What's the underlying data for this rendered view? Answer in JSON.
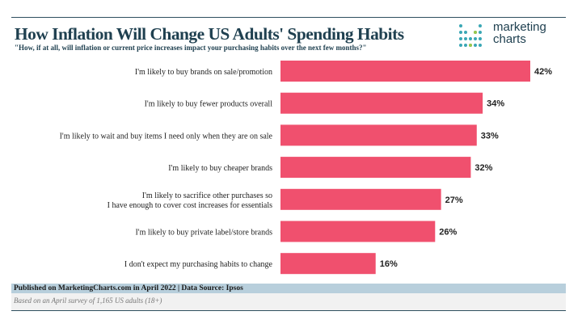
{
  "chart_data": {
    "type": "bar",
    "orientation": "horizontal",
    "title": "How Inflation Will Change US Adults' Spending Habits",
    "subtitle": "\"How, if at all, will inflation or current price increases impact your purchasing habits over the next few months?\"",
    "categories": [
      [
        "I'm likely to buy brands on sale/promotion"
      ],
      [
        "I'm likely to buy fewer products overall"
      ],
      [
        "I'm likely to wait and buy items I need only when they are on sale"
      ],
      [
        "I'm likely to buy cheaper brands"
      ],
      [
        "I'm likely to sacrifice other purchases so",
        "I have enough to cover cost increases for essentials"
      ],
      [
        "I'm likely to buy private label/store brands"
      ],
      [
        "I don't expect my purchasing habits to change"
      ]
    ],
    "values": [
      42,
      34,
      33,
      32,
      27,
      26,
      16
    ],
    "value_labels": [
      "42%",
      "34%",
      "33%",
      "32%",
      "27%",
      "26%",
      "16%"
    ],
    "xlim": [
      0,
      42
    ],
    "bar_color": "#f0506e",
    "grid": false
  },
  "logo": {
    "line1": "marketing",
    "line2": "charts"
  },
  "footer": {
    "published": "Published on MarketingCharts.com in April 2022 | Data Source: Ipsos",
    "note": "Based on an April survey of 1,165 US adults (18+)"
  }
}
